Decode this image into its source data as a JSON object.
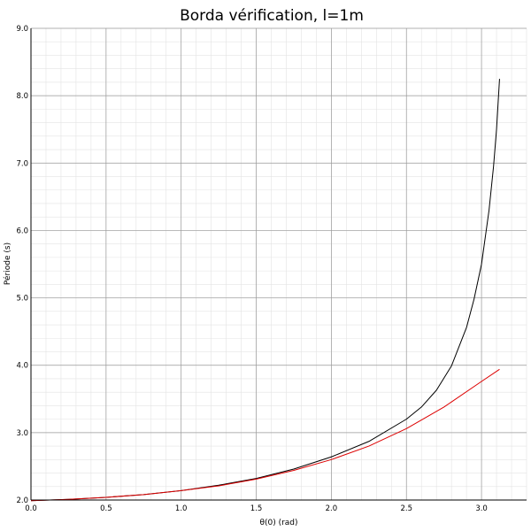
{
  "chart_data": {
    "type": "line",
    "title": "Borda vérification, l=1m",
    "xlabel": "θ(0) (rad)",
    "ylabel": "Période (s)",
    "xlim": [
      0.0,
      3.3
    ],
    "ylim": [
      2.0,
      9.0
    ],
    "x_ticks": [
      "0.0",
      "0.5",
      "1.0",
      "1.5",
      "2.0",
      "2.5",
      "3.0"
    ],
    "x_tick_values": [
      0.0,
      0.5,
      1.0,
      1.5,
      2.0,
      2.5,
      3.0
    ],
    "y_ticks": [
      "2.0",
      "3.0",
      "4.0",
      "5.0",
      "6.0",
      "7.0",
      "8.0",
      "9.0"
    ],
    "y_tick_values": [
      2.0,
      3.0,
      4.0,
      5.0,
      6.0,
      7.0,
      8.0,
      9.0
    ],
    "grid": true,
    "legend": "none",
    "series": [
      {
        "color": "#000000",
        "x": [
          0.0,
          0.25,
          0.5,
          0.75,
          1.0,
          1.25,
          1.5,
          1.75,
          2.0,
          2.25,
          2.5,
          2.6,
          2.7,
          2.8,
          2.9,
          2.95,
          3.0,
          3.05,
          3.08,
          3.1,
          3.12
        ],
        "y": [
          1.99,
          2.01,
          2.04,
          2.08,
          2.14,
          2.22,
          2.32,
          2.46,
          2.64,
          2.87,
          3.2,
          3.38,
          3.63,
          3.99,
          4.56,
          4.98,
          5.5,
          6.3,
          6.95,
          7.5,
          8.25
        ]
      },
      {
        "color": "#dd0000",
        "x": [
          0.0,
          0.25,
          0.5,
          0.75,
          1.0,
          1.25,
          1.5,
          1.75,
          2.0,
          2.25,
          2.5,
          2.75,
          3.0,
          3.12
        ],
        "y": [
          1.99,
          2.01,
          2.04,
          2.08,
          2.14,
          2.21,
          2.31,
          2.44,
          2.6,
          2.8,
          3.06,
          3.38,
          3.76,
          3.94
        ]
      }
    ]
  }
}
